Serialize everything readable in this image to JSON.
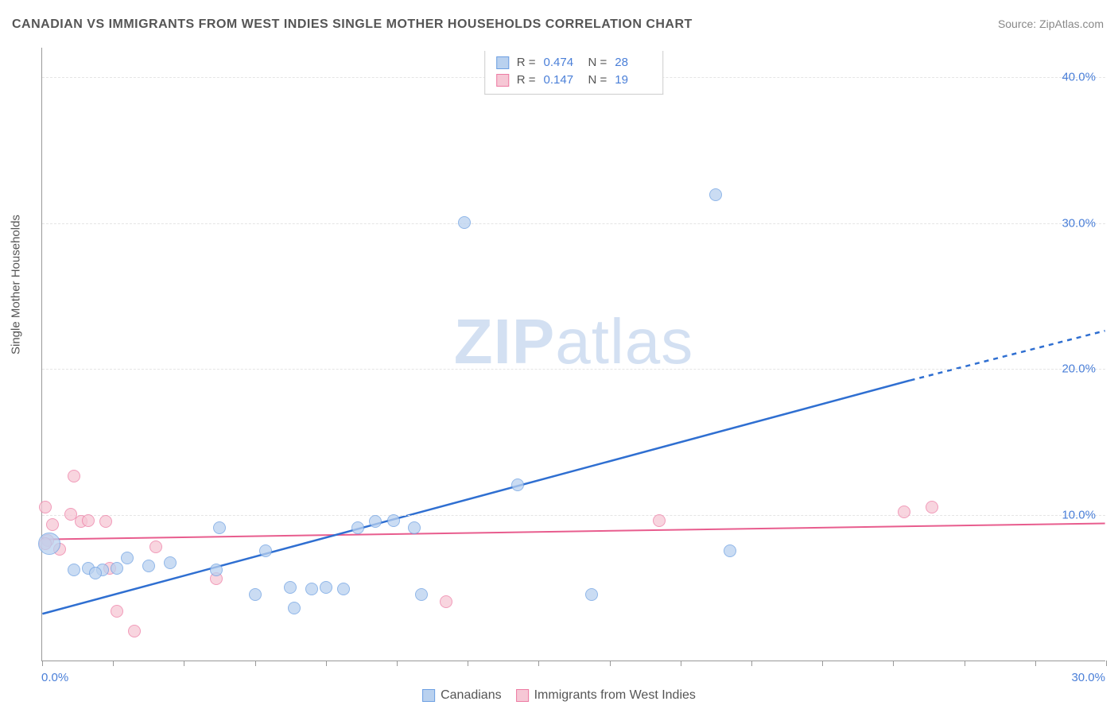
{
  "title": "CANADIAN VS IMMIGRANTS FROM WEST INDIES SINGLE MOTHER HOUSEHOLDS CORRELATION CHART",
  "source_label": "Source: ZipAtlas.com",
  "watermark_bold": "ZIP",
  "watermark_rest": "atlas",
  "y_axis_label": "Single Mother Households",
  "chart": {
    "type": "scatter",
    "background_color": "#ffffff",
    "grid_color": "#e5e5e5",
    "axis_color": "#999999",
    "xlim": [
      0,
      30
    ],
    "ylim": [
      0,
      42
    ],
    "x_ticks": [
      0,
      2,
      4,
      6,
      8,
      10,
      12,
      14,
      16,
      18,
      20,
      22,
      24,
      26,
      28,
      30
    ],
    "x_tick_labels": [
      {
        "pos": 0,
        "text": "0.0%",
        "align": "left"
      },
      {
        "pos": 30,
        "text": "30.0%",
        "align": "right"
      }
    ],
    "y_tick_labels": [
      {
        "pos": 10,
        "text": "10.0%"
      },
      {
        "pos": 20,
        "text": "20.0%"
      },
      {
        "pos": 30,
        "text": "30.0%"
      },
      {
        "pos": 40,
        "text": "40.0%"
      }
    ],
    "title_fontsize": 16,
    "label_fontsize": 15,
    "tick_fontsize": 15,
    "tick_label_color": "#4a7fd8"
  },
  "series": {
    "canadians": {
      "label": "Canadians",
      "fill_color": "#b9d1ef",
      "stroke_color": "#6c9fe2",
      "fill_opacity": 0.75,
      "line_color": "#2f6fd1",
      "line_width": 2.5,
      "marker_base_radius": 8,
      "r_label": "R =",
      "r_value": "0.474",
      "n_label": "N =",
      "n_value": "28",
      "trend": {
        "x1": 0,
        "y1": 3.2,
        "x2": 24.5,
        "y2": 19.2,
        "x3": 30,
        "y3": 22.6,
        "dash_after_x": 24.5
      },
      "points": [
        {
          "x": 0.2,
          "y": 8.0,
          "r": 14
        },
        {
          "x": 0.9,
          "y": 6.2,
          "r": 8
        },
        {
          "x": 1.3,
          "y": 6.3,
          "r": 8
        },
        {
          "x": 1.7,
          "y": 6.2,
          "r": 8
        },
        {
          "x": 2.1,
          "y": 6.3,
          "r": 8
        },
        {
          "x": 1.5,
          "y": 6.0,
          "r": 8
        },
        {
          "x": 2.4,
          "y": 7.0,
          "r": 8
        },
        {
          "x": 3.0,
          "y": 6.5,
          "r": 8
        },
        {
          "x": 3.6,
          "y": 6.7,
          "r": 8
        },
        {
          "x": 4.9,
          "y": 6.2,
          "r": 8
        },
        {
          "x": 5.0,
          "y": 9.1,
          "r": 8
        },
        {
          "x": 6.3,
          "y": 7.5,
          "r": 8
        },
        {
          "x": 6.0,
          "y": 4.5,
          "r": 8
        },
        {
          "x": 7.1,
          "y": 3.6,
          "r": 8
        },
        {
          "x": 7.0,
          "y": 5.0,
          "r": 8
        },
        {
          "x": 7.6,
          "y": 4.9,
          "r": 8
        },
        {
          "x": 8.0,
          "y": 5.0,
          "r": 8
        },
        {
          "x": 8.5,
          "y": 4.9,
          "r": 8
        },
        {
          "x": 8.9,
          "y": 9.1,
          "r": 8
        },
        {
          "x": 9.4,
          "y": 9.5,
          "r": 8
        },
        {
          "x": 9.9,
          "y": 9.6,
          "r": 8
        },
        {
          "x": 10.5,
          "y": 9.1,
          "r": 8
        },
        {
          "x": 10.7,
          "y": 4.5,
          "r": 8
        },
        {
          "x": 11.9,
          "y": 30.0,
          "r": 8
        },
        {
          "x": 13.4,
          "y": 12.0,
          "r": 8
        },
        {
          "x": 15.5,
          "y": 4.5,
          "r": 8
        },
        {
          "x": 19.0,
          "y": 31.9,
          "r": 8
        },
        {
          "x": 19.4,
          "y": 7.5,
          "r": 8
        }
      ]
    },
    "immigrants": {
      "label": "Immigrants from West Indies",
      "fill_color": "#f6c7d5",
      "stroke_color": "#ed7ba3",
      "fill_opacity": 0.75,
      "line_color": "#e85d8e",
      "line_width": 2,
      "marker_base_radius": 8,
      "r_label": "R =",
      "r_value": "0.147",
      "n_label": "N =",
      "n_value": "19",
      "trend": {
        "x1": 0,
        "y1": 8.3,
        "x2": 30,
        "y2": 9.4
      },
      "points": [
        {
          "x": 0.1,
          "y": 10.5,
          "r": 8
        },
        {
          "x": 0.15,
          "y": 8.2,
          "r": 8
        },
        {
          "x": 0.1,
          "y": 8.0,
          "r": 8
        },
        {
          "x": 0.3,
          "y": 9.3,
          "r": 8
        },
        {
          "x": 0.5,
          "y": 7.6,
          "r": 8
        },
        {
          "x": 0.8,
          "y": 10.0,
          "r": 8
        },
        {
          "x": 0.9,
          "y": 12.6,
          "r": 8
        },
        {
          "x": 1.1,
          "y": 9.5,
          "r": 8
        },
        {
          "x": 1.3,
          "y": 9.6,
          "r": 8
        },
        {
          "x": 1.8,
          "y": 9.5,
          "r": 8
        },
        {
          "x": 1.9,
          "y": 6.3,
          "r": 8
        },
        {
          "x": 2.1,
          "y": 3.4,
          "r": 8
        },
        {
          "x": 2.6,
          "y": 2.0,
          "r": 8
        },
        {
          "x": 3.2,
          "y": 7.8,
          "r": 8
        },
        {
          "x": 4.9,
          "y": 5.6,
          "r": 8
        },
        {
          "x": 11.4,
          "y": 4.0,
          "r": 8
        },
        {
          "x": 17.4,
          "y": 9.6,
          "r": 8
        },
        {
          "x": 24.3,
          "y": 10.2,
          "r": 8
        },
        {
          "x": 25.1,
          "y": 10.5,
          "r": 8
        }
      ]
    }
  },
  "legend_bottom": [
    {
      "key": "canadians"
    },
    {
      "key": "immigrants"
    }
  ]
}
